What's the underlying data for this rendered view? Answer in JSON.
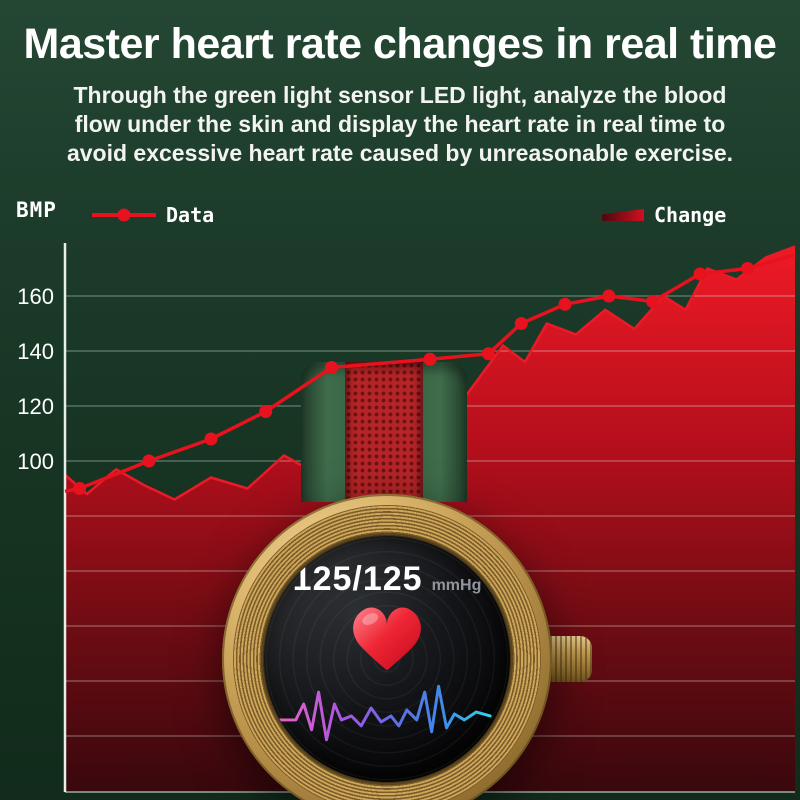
{
  "page": {
    "title": "Master heart rate changes in real time",
    "subtitle_lines": [
      "Through the green light sensor LED light, analyze the blood",
      "flow under the skin and display the heart rate in real time to",
      "avoid excessive heart rate caused by unreasonable exercise."
    ]
  },
  "chart_data": {
    "type": "line+area",
    "title": "",
    "xlabel": "",
    "ylabel": "BMP",
    "ylim": [
      -20,
      180
    ],
    "yticks_labeled": [
      160,
      140,
      120,
      100
    ],
    "gridlines": [
      160,
      140,
      120,
      100,
      80,
      60,
      40,
      20,
      0
    ],
    "grid": true,
    "legend_position": "top",
    "legend": [
      {
        "label": "Data",
        "marker": "line-dot",
        "color": "#e8121f"
      },
      {
        "label": "Change",
        "marker": "gradient-bar",
        "color": "#d21020"
      }
    ],
    "series": [
      {
        "name": "Data",
        "type": "line",
        "color": "#e8121f",
        "markers": true,
        "x": [
          0,
          0.02,
          0.115,
          0.2,
          0.275,
          0.365,
          0.5,
          0.58,
          0.625,
          0.685,
          0.745,
          0.805,
          0.87,
          0.935,
          1.0
        ],
        "values": [
          89,
          90,
          100,
          108,
          118,
          134,
          137,
          139,
          150,
          157,
          160,
          158,
          168,
          170,
          175
        ]
      },
      {
        "name": "Change",
        "type": "area",
        "color": "#d90f1e",
        "x": [
          0,
          0.03,
          0.07,
          0.11,
          0.15,
          0.2,
          0.25,
          0.3,
          0.34,
          0.38,
          0.42,
          0.46,
          0.5,
          0.55,
          0.6,
          0.63,
          0.66,
          0.7,
          0.74,
          0.78,
          0.82,
          0.85,
          0.88,
          0.92,
          0.96,
          1.0
        ],
        "values": [
          95,
          88,
          97,
          91,
          86,
          94,
          90,
          102,
          96,
          110,
          104,
          118,
          128,
          124,
          142,
          136,
          150,
          146,
          155,
          148,
          160,
          155,
          170,
          166,
          174,
          178
        ]
      }
    ]
  },
  "watch": {
    "bp_value": "125/125",
    "bp_unit": "mmHg"
  },
  "colors": {
    "background": "#1c3b2a",
    "accent_red": "#e8121f",
    "area_dark": "#38080d",
    "gold": "#cda65c",
    "band_green": "#33603f",
    "band_red": "#b52528"
  }
}
